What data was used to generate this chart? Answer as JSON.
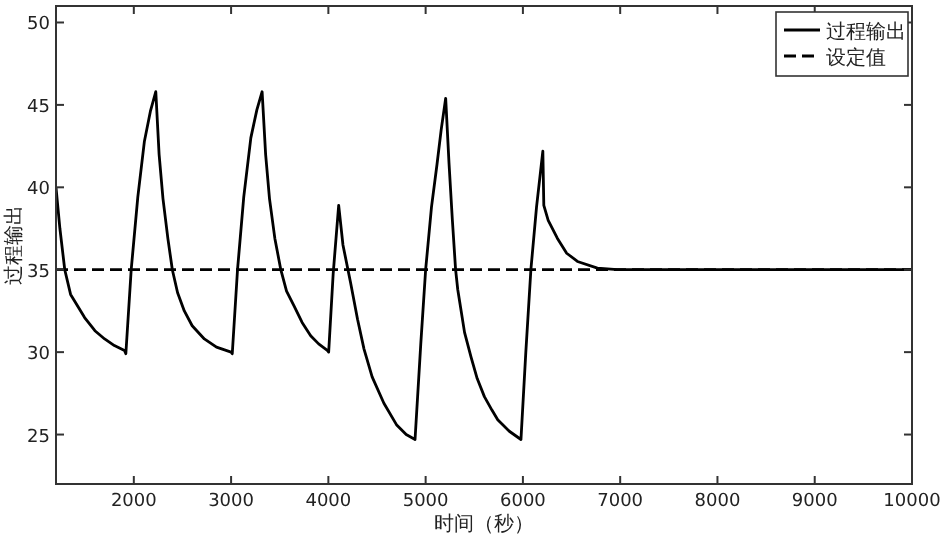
{
  "chart_data": {
    "type": "line",
    "xlabel": "时间（秒）",
    "ylabel": "过程输出",
    "xlim": [
      1200,
      10000
    ],
    "ylim": [
      22,
      51
    ],
    "xticks": [
      2000,
      3000,
      4000,
      5000,
      6000,
      7000,
      8000,
      9000,
      10000
    ],
    "yticks": [
      25,
      30,
      35,
      40,
      45,
      50
    ],
    "legend": "top right",
    "grid": false,
    "series": [
      {
        "name": "过程输出",
        "color": "#000000",
        "line_style": "solid",
        "x": [
          1200,
          1240,
          1290,
          1350,
          1494,
          1600,
          1700,
          1800,
          1904,
          1918,
          1973,
          2041,
          2109,
          2170,
          2226,
          2260,
          2300,
          2350,
          2396,
          2450,
          2519,
          2600,
          2725,
          2850,
          3000,
          3012,
          3066,
          3130,
          3203,
          3265,
          3319,
          3355,
          3395,
          3450,
          3511,
          3570,
          3647,
          3730,
          3818,
          3900,
          3989,
          4003,
          4050,
          4106,
          4150,
          4229,
          4300,
          4366,
          4450,
          4571,
          4700,
          4800,
          4891,
          4950,
          5000,
          5060,
          5117,
          5160,
          5206,
          5240,
          5275,
          5308,
          5330,
          5400,
          5467,
          5530,
          5604,
          5680,
          5741,
          5860,
          5980,
          6030,
          6082,
          6140,
          6205,
          6215,
          6260,
          6355,
          6450,
          6561,
          6766,
          6971,
          10000
        ],
        "values": [
          40.0,
          37.5,
          35.0,
          33.5,
          32.1,
          31.3,
          30.8,
          30.4,
          30.1,
          29.9,
          35.0,
          39.4,
          42.8,
          44.6,
          45.8,
          42.0,
          39.3,
          36.9,
          35.0,
          33.6,
          32.5,
          31.6,
          30.8,
          30.3,
          30.0,
          29.9,
          35.0,
          39.4,
          43.0,
          44.7,
          45.8,
          42.0,
          39.3,
          36.9,
          35.0,
          33.7,
          32.8,
          31.8,
          31.0,
          30.5,
          30.1,
          30.0,
          34.8,
          38.9,
          36.5,
          34.2,
          32.0,
          30.2,
          28.5,
          26.9,
          25.6,
          25.0,
          24.7,
          30.5,
          35.0,
          38.8,
          41.4,
          43.5,
          45.4,
          41.5,
          38.0,
          35.0,
          33.8,
          31.2,
          29.7,
          28.4,
          27.3,
          26.5,
          25.9,
          25.2,
          24.7,
          30.0,
          35.0,
          38.8,
          42.2,
          38.9,
          38.0,
          36.9,
          36.0,
          35.5,
          35.1,
          35.0,
          35.0
        ]
      },
      {
        "name": "设定值",
        "color": "#000000",
        "line_style": "dashed",
        "x": [
          1200,
          10000
        ],
        "values": [
          35,
          35
        ]
      }
    ]
  }
}
